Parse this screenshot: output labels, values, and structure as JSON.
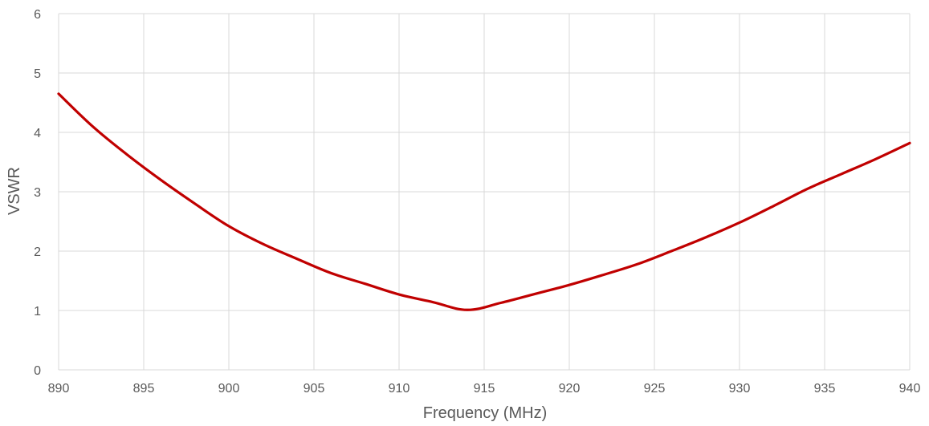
{
  "chart_data": {
    "type": "line",
    "title": "",
    "xlabel": "Frequency (MHz)",
    "ylabel": "VSWR",
    "xlim": [
      890,
      940
    ],
    "ylim": [
      0,
      6
    ],
    "x_ticks": [
      890,
      895,
      900,
      905,
      910,
      915,
      920,
      925,
      930,
      935,
      940
    ],
    "y_ticks": [
      0,
      1,
      2,
      3,
      4,
      5,
      6
    ],
    "grid": true,
    "legend": "none",
    "series": [
      {
        "color": "#c00000",
        "x": [
          890,
          892,
          894,
          896,
          898,
          900,
          902,
          904,
          906,
          908,
          910,
          912,
          914,
          916,
          918,
          920,
          922,
          924,
          926,
          928,
          930,
          932,
          934,
          936,
          938,
          940
        ],
        "y": [
          4.65,
          4.1,
          3.63,
          3.2,
          2.8,
          2.42,
          2.12,
          1.87,
          1.63,
          1.45,
          1.27,
          1.14,
          1.01,
          1.13,
          1.28,
          1.43,
          1.6,
          1.78,
          2.0,
          2.23,
          2.48,
          2.76,
          3.05,
          3.3,
          3.55,
          3.82
        ]
      }
    ]
  }
}
